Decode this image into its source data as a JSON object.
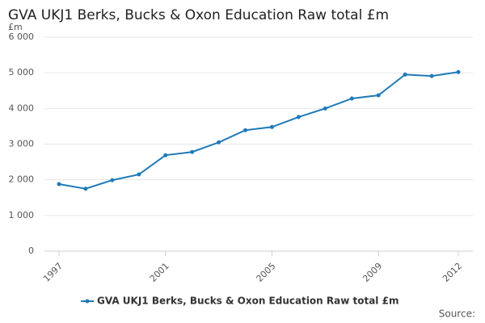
{
  "chart_data": {
    "type": "line",
    "title": "GVA UKJ1 Berks, Bucks & Oxon Education Raw total £m",
    "y_label": "£m",
    "x": [
      1997,
      1998,
      1999,
      2000,
      2001,
      2002,
      2003,
      2004,
      2005,
      2006,
      2007,
      2008,
      2009,
      2010,
      2011,
      2012
    ],
    "series": [
      {
        "name": "GVA UKJ1 Berks, Bucks & Oxon Education Raw total £m",
        "color": "#1f7ab8",
        "values": [
          1880,
          1750,
          1990,
          2150,
          2690,
          2780,
          3050,
          3390,
          3480,
          3760,
          4000,
          4280,
          4370,
          4950,
          4910,
          5020
        ]
      }
    ],
    "xlim": [
      1997,
      2012
    ],
    "xticks": [
      1997,
      2001,
      2005,
      2009,
      2012
    ],
    "ylim": [
      0,
      6000
    ],
    "yticks": [
      0,
      {
        "value": 1000,
        "label": "1 000"
      },
      {
        "value": 2000,
        "label": "2 000"
      },
      {
        "value": 3000,
        "label": "3 000"
      },
      {
        "value": 4000,
        "label": "4 000"
      },
      {
        "value": 5000,
        "label": "5 000"
      },
      {
        "value": 6000,
        "label": "6 000"
      }
    ],
    "grid": true,
    "legend": "bottom",
    "source": "Source:"
  }
}
